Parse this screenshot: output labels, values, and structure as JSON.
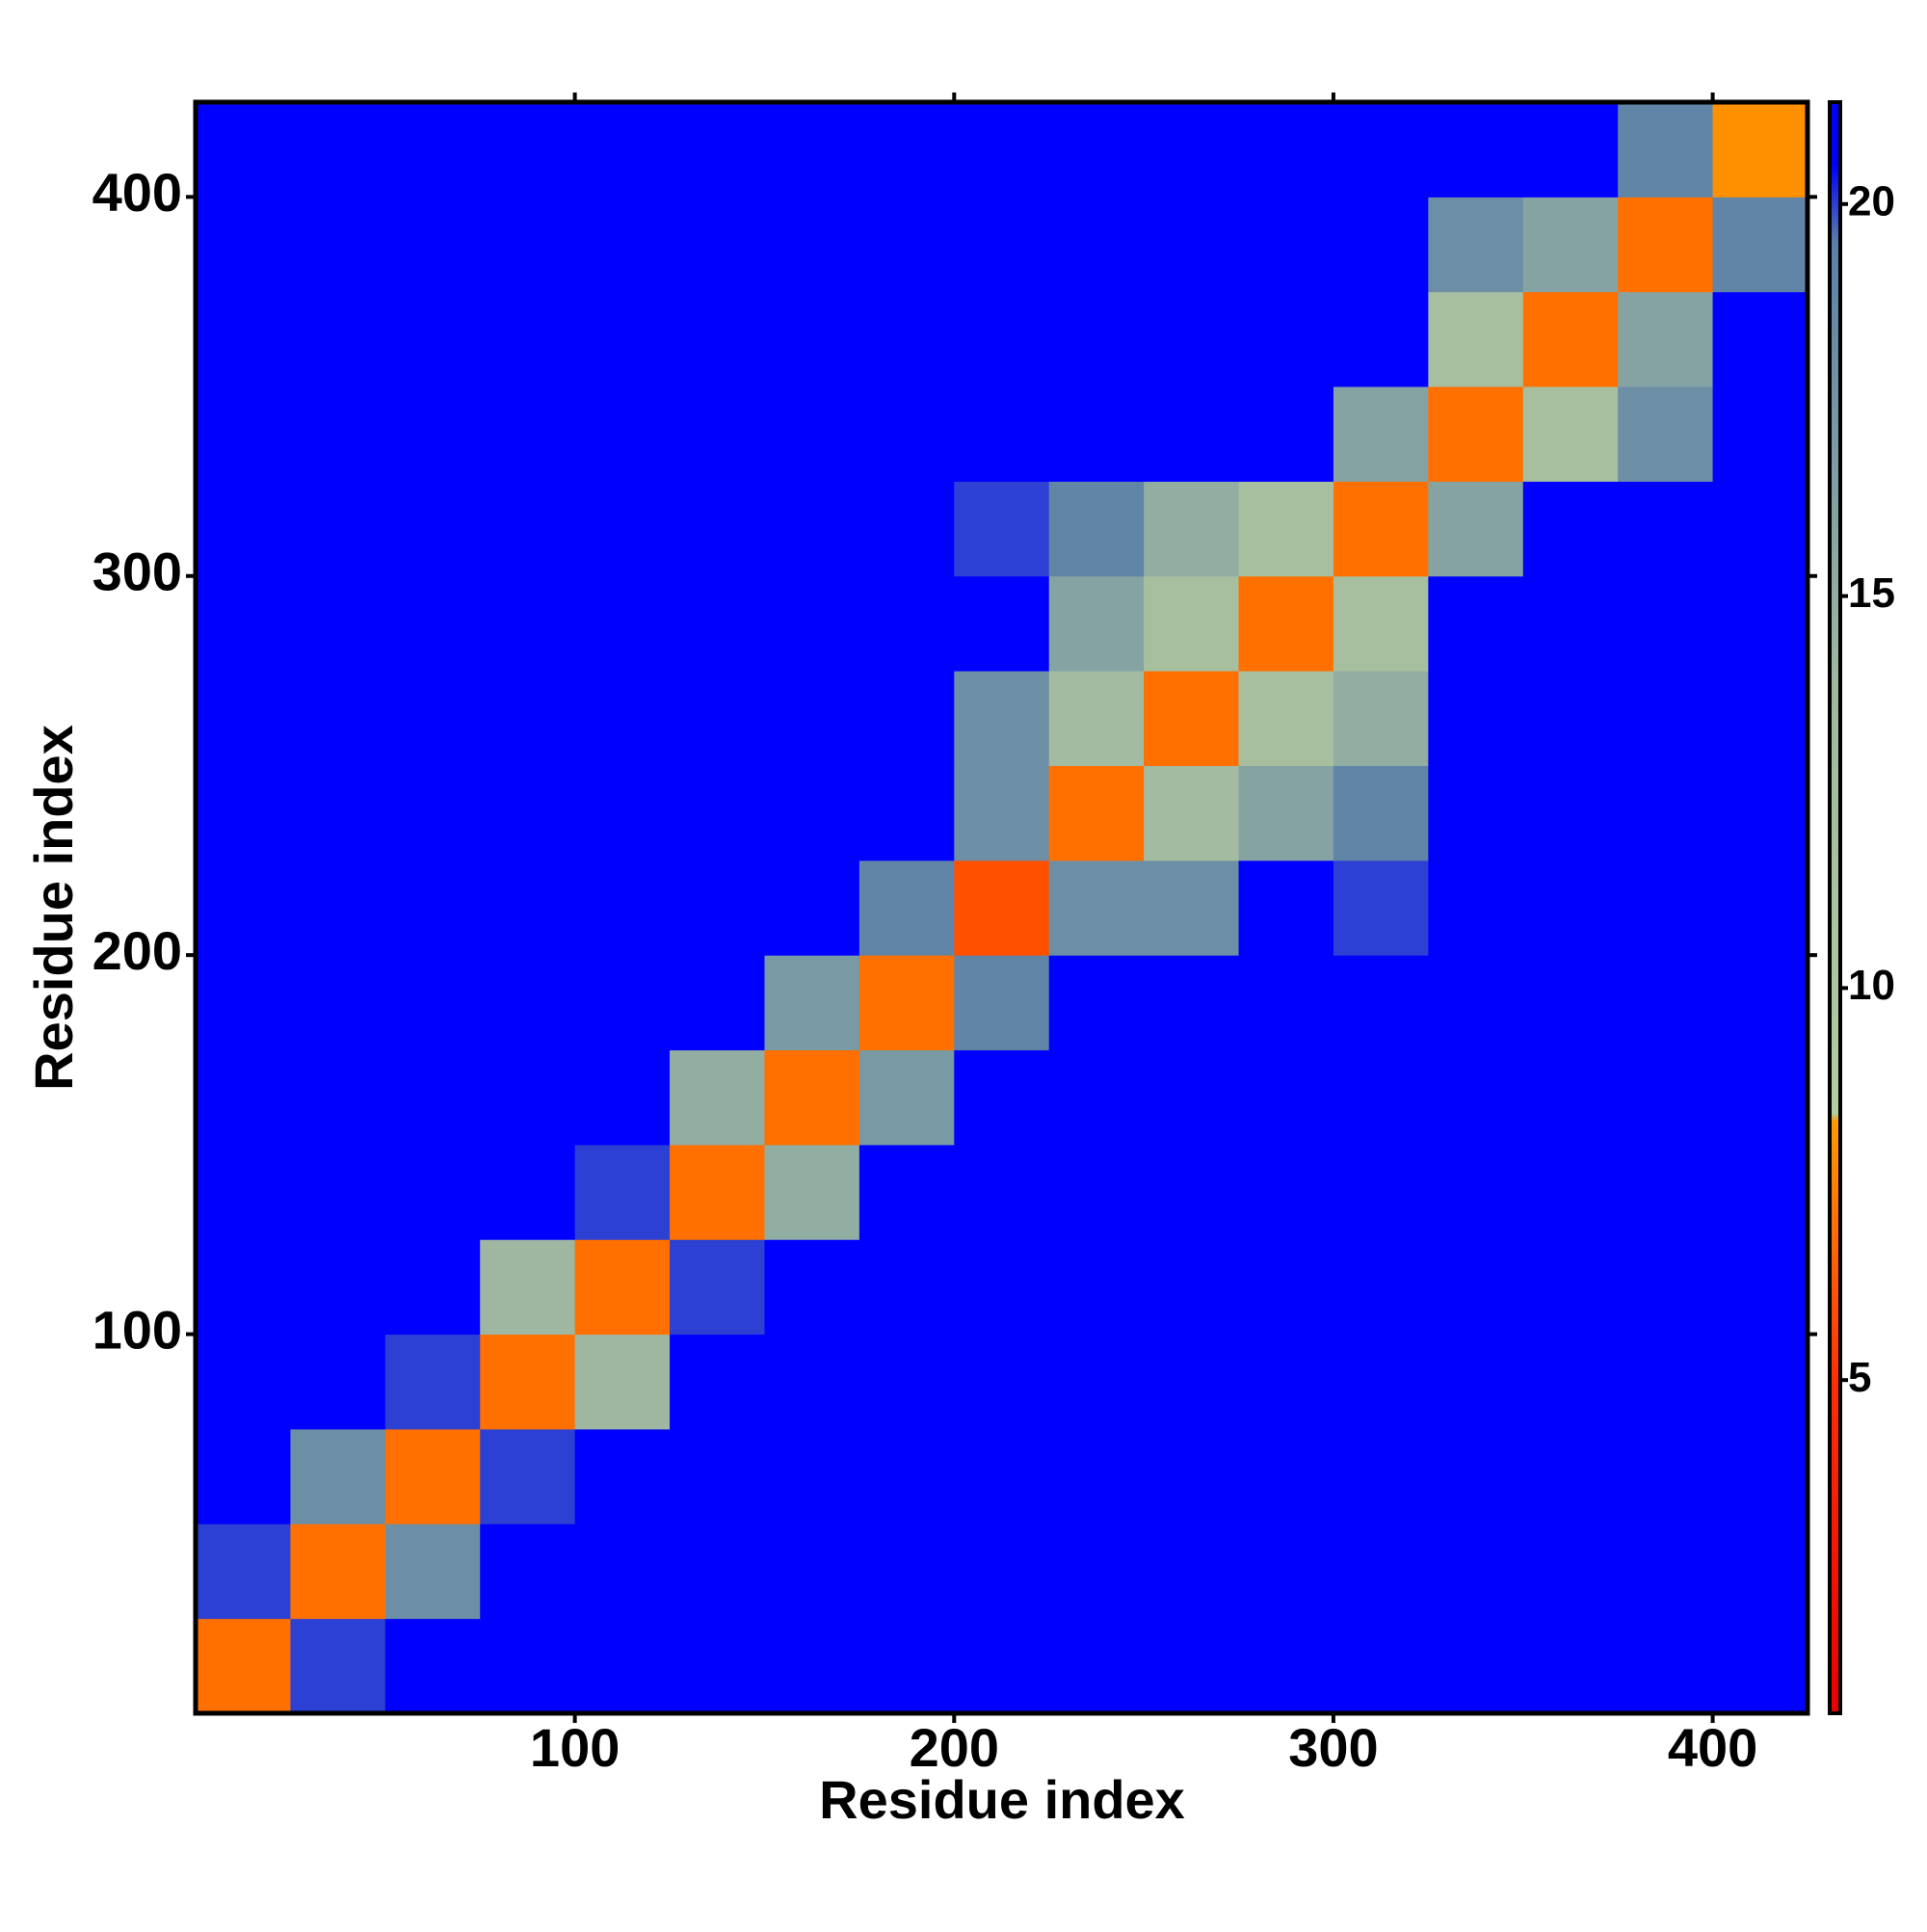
{
  "chart_data": {
    "type": "heatmap",
    "xlabel": "Residue index",
    "ylabel": "Residue index",
    "xlim": [
      0,
      425
    ],
    "ylim": [
      0,
      425
    ],
    "xticks": [
      100,
      200,
      300,
      400
    ],
    "yticks": [
      100,
      200,
      300,
      400
    ],
    "bin_edges": [
      0,
      25,
      50,
      75,
      100,
      125,
      150,
      175,
      200,
      225,
      250,
      275,
      300,
      325,
      350,
      375,
      400,
      425
    ],
    "z": [
      [
        7,
        20,
        21,
        21,
        21,
        21,
        21,
        21,
        21,
        21,
        21,
        21,
        21,
        21,
        21,
        21,
        21
      ],
      [
        20,
        7,
        18,
        21,
        21,
        21,
        21,
        21,
        21,
        21,
        21,
        21,
        21,
        21,
        21,
        21,
        21
      ],
      [
        21,
        18,
        7,
        20,
        21,
        21,
        21,
        21,
        21,
        21,
        21,
        21,
        21,
        21,
        21,
        21,
        21
      ],
      [
        21,
        21,
        20,
        7,
        14,
        21,
        21,
        21,
        21,
        21,
        21,
        21,
        21,
        21,
        21,
        21,
        21
      ],
      [
        21,
        21,
        21,
        14,
        7,
        20,
        21,
        21,
        21,
        21,
        21,
        21,
        21,
        21,
        21,
        21,
        21
      ],
      [
        21,
        21,
        21,
        21,
        20,
        7,
        15,
        21,
        21,
        21,
        21,
        21,
        21,
        21,
        21,
        21,
        21
      ],
      [
        21,
        21,
        21,
        21,
        21,
        15,
        7,
        17,
        21,
        21,
        21,
        21,
        21,
        21,
        21,
        21,
        21
      ],
      [
        21,
        21,
        21,
        21,
        21,
        21,
        17,
        7,
        19,
        21,
        21,
        21,
        21,
        21,
        21,
        21,
        21
      ],
      [
        21,
        21,
        21,
        21,
        21,
        21,
        21,
        19,
        6,
        18,
        18,
        21,
        20,
        21,
        21,
        21,
        21
      ],
      [
        21,
        21,
        21,
        21,
        21,
        21,
        21,
        21,
        18,
        7,
        13,
        16,
        19,
        21,
        21,
        21,
        21
      ],
      [
        21,
        21,
        21,
        21,
        21,
        21,
        21,
        21,
        18,
        13,
        7,
        12,
        15,
        21,
        21,
        21,
        21
      ],
      [
        21,
        21,
        21,
        21,
        21,
        21,
        21,
        21,
        21,
        16,
        12,
        7,
        12,
        21,
        21,
        21,
        21
      ],
      [
        21,
        21,
        21,
        21,
        21,
        21,
        21,
        21,
        20,
        19,
        15,
        12,
        7,
        16,
        21,
        21,
        21
      ],
      [
        21,
        21,
        21,
        21,
        21,
        21,
        21,
        21,
        21,
        21,
        21,
        21,
        16,
        7,
        12,
        18,
        21
      ],
      [
        21,
        21,
        21,
        21,
        21,
        21,
        21,
        21,
        21,
        21,
        21,
        21,
        21,
        12,
        7,
        16,
        21
      ],
      [
        21,
        21,
        21,
        21,
        21,
        21,
        21,
        21,
        21,
        21,
        21,
        21,
        21,
        18,
        16,
        7,
        19
      ],
      [
        21,
        21,
        21,
        21,
        21,
        21,
        21,
        21,
        21,
        21,
        21,
        21,
        21,
        21,
        21,
        19,
        8
      ]
    ],
    "colorscale": [
      {
        "value": 0.75,
        "color": "#e80000"
      },
      {
        "value": 5,
        "color": "#ff3000"
      },
      {
        "value": 8.3,
        "color": "#ff9a00"
      },
      {
        "value": 8.4,
        "color": "#b4cc9e"
      },
      {
        "value": 14,
        "color": "#9fb7a0"
      },
      {
        "value": 19.5,
        "color": "#5a80a8"
      },
      {
        "value": 20.5,
        "color": "#0000ff"
      },
      {
        "value": 21.3,
        "color": "#0000ff"
      }
    ],
    "clim": [
      0.75,
      21.3
    ],
    "cticks": [
      5,
      10,
      15,
      20
    ]
  }
}
